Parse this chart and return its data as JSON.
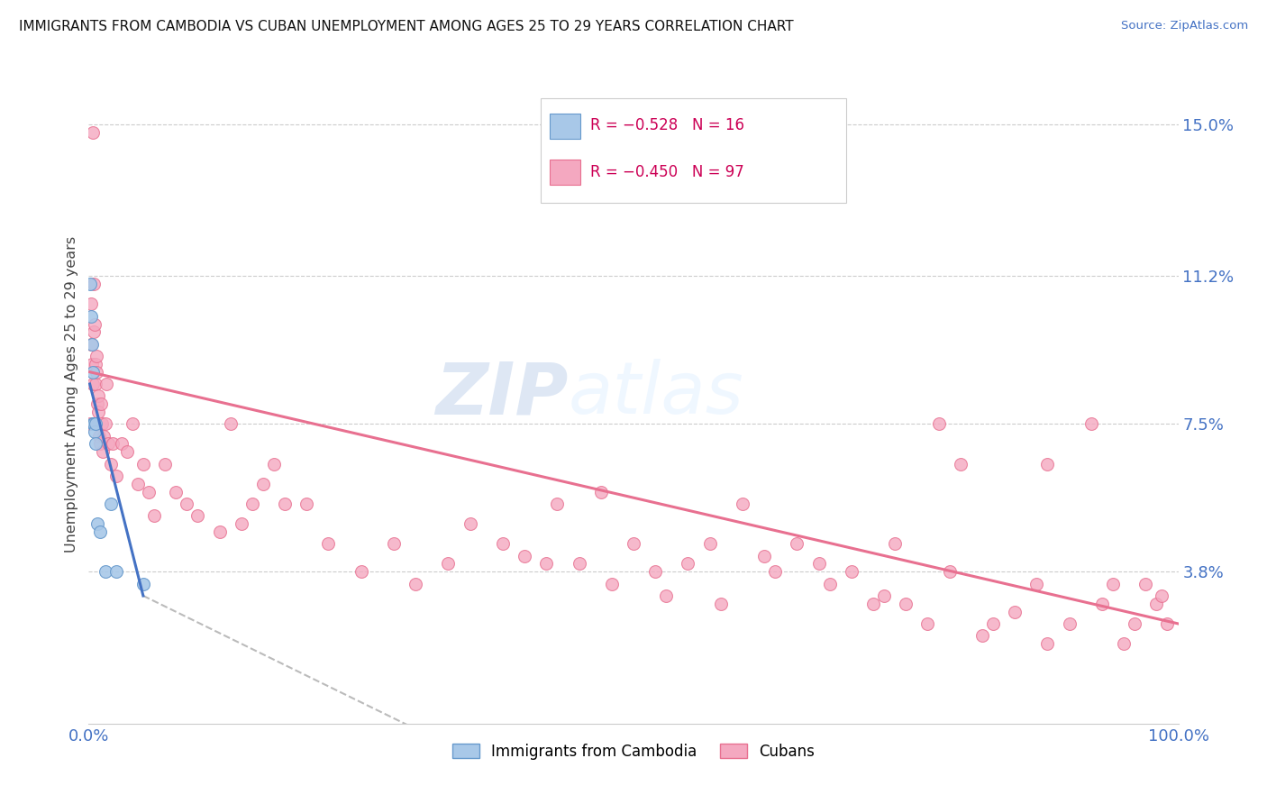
{
  "title": "IMMIGRANTS FROM CAMBODIA VS CUBAN UNEMPLOYMENT AMONG AGES 25 TO 29 YEARS CORRELATION CHART",
  "source": "Source: ZipAtlas.com",
  "ylabel": "Unemployment Among Ages 25 to 29 years",
  "xlim": [
    0.0,
    100.0
  ],
  "ylim": [
    0.0,
    16.5
  ],
  "yticks": [
    3.8,
    7.5,
    11.2,
    15.0
  ],
  "xticks": [
    0.0,
    100.0
  ],
  "xtick_labels": [
    "0.0%",
    "100.0%"
  ],
  "ytick_labels": [
    "3.8%",
    "7.5%",
    "11.2%",
    "15.0%"
  ],
  "grid_color": "#cccccc",
  "background_color": "#ffffff",
  "watermark_zip": "ZIP",
  "watermark_atlas": "atlas",
  "legend_text1": "R = −0.528   N = 16",
  "legend_text2": "R = −0.450   N = 97",
  "cambodia_color": "#a8c8e8",
  "cuban_color": "#f4a8c0",
  "cambodia_edge": "#6699cc",
  "cuban_edge": "#e87090",
  "line_cambodia_color": "#4472c4",
  "line_cuban_color": "#e87090",
  "marker_size": 100,
  "cambodia_x": [
    0.15,
    0.2,
    0.3,
    0.35,
    0.4,
    0.45,
    0.5,
    0.55,
    0.6,
    0.65,
    0.8,
    1.0,
    1.5,
    2.0,
    2.5,
    5.0
  ],
  "cambodia_y": [
    11.0,
    10.2,
    9.5,
    8.8,
    7.5,
    7.5,
    7.5,
    7.3,
    7.0,
    7.5,
    5.0,
    4.8,
    3.8,
    5.5,
    3.8,
    3.5
  ],
  "cuban_x": [
    0.15,
    0.2,
    0.25,
    0.3,
    0.35,
    0.4,
    0.45,
    0.5,
    0.55,
    0.6,
    0.65,
    0.7,
    0.75,
    0.8,
    0.85,
    0.9,
    0.95,
    1.0,
    1.1,
    1.2,
    1.3,
    1.4,
    1.5,
    1.6,
    1.8,
    2.0,
    2.2,
    2.5,
    3.0,
    3.5,
    4.0,
    4.5,
    5.0,
    5.5,
    6.0,
    7.0,
    8.0,
    9.0,
    10.0,
    12.0,
    14.0,
    15.0,
    17.0,
    20.0,
    22.0,
    25.0,
    28.0,
    30.0,
    33.0,
    35.0,
    38.0,
    40.0,
    43.0,
    45.0,
    48.0,
    50.0,
    53.0,
    55.0,
    58.0,
    60.0,
    63.0,
    65.0,
    68.0,
    70.0,
    73.0,
    75.0,
    78.0,
    80.0,
    83.0,
    85.0,
    87.0,
    88.0,
    90.0,
    92.0,
    93.0,
    95.0,
    97.0,
    98.0,
    99.0,
    13.0,
    16.0,
    18.0,
    42.0,
    47.0,
    52.0,
    57.0,
    62.0,
    67.0,
    72.0,
    77.0,
    82.0,
    88.0,
    94.0,
    96.0,
    98.5,
    74.0,
    79.0
  ],
  "cuban_y": [
    7.5,
    9.5,
    10.5,
    9.0,
    14.8,
    8.5,
    9.8,
    11.0,
    10.0,
    8.5,
    9.0,
    9.2,
    8.8,
    8.0,
    7.8,
    8.2,
    7.2,
    7.0,
    8.0,
    7.5,
    6.8,
    7.2,
    7.5,
    8.5,
    7.0,
    6.5,
    7.0,
    6.2,
    7.0,
    6.8,
    7.5,
    6.0,
    6.5,
    5.8,
    5.2,
    6.5,
    5.8,
    5.5,
    5.2,
    4.8,
    5.0,
    5.5,
    6.5,
    5.5,
    4.5,
    3.8,
    4.5,
    3.5,
    4.0,
    5.0,
    4.5,
    4.2,
    5.5,
    4.0,
    3.5,
    4.5,
    3.2,
    4.0,
    3.0,
    5.5,
    3.8,
    4.5,
    3.5,
    3.8,
    3.2,
    3.0,
    7.5,
    6.5,
    2.5,
    2.8,
    3.5,
    2.0,
    2.5,
    7.5,
    3.0,
    2.0,
    3.5,
    3.0,
    2.5,
    7.5,
    6.0,
    5.5,
    4.0,
    5.8,
    3.8,
    4.5,
    4.2,
    4.0,
    3.0,
    2.5,
    2.2,
    6.5,
    3.5,
    2.5,
    3.2,
    4.5,
    3.8
  ],
  "reg_cambodia_start_x": 0.1,
  "reg_cambodia_start_y": 8.5,
  "reg_cambodia_end_x": 5.0,
  "reg_cambodia_end_y": 3.2,
  "reg_cuban_start_x": 0.1,
  "reg_cuban_start_y": 8.8,
  "reg_cuban_end_x": 100.0,
  "reg_cuban_end_y": 2.5,
  "dash_start_x": 5.0,
  "dash_start_y": 3.2,
  "dash_end_x": 35.0,
  "dash_end_y": -0.8
}
